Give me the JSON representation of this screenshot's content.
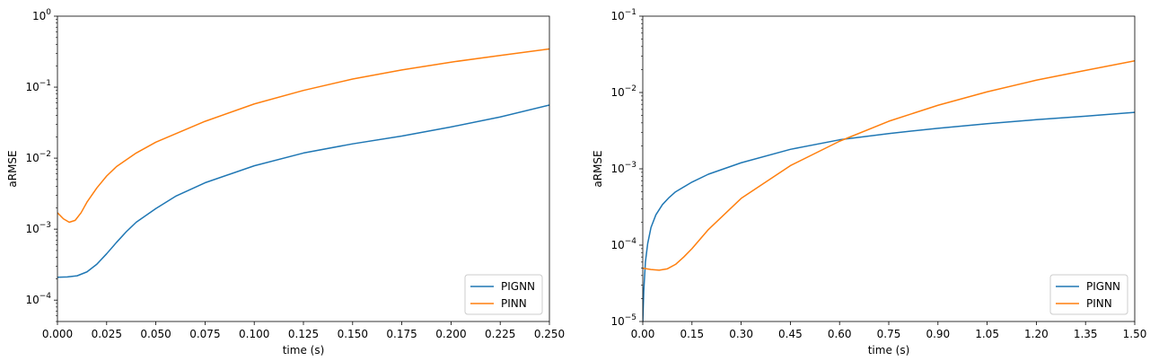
{
  "chart_data": [
    {
      "type": "line",
      "xscale": "linear",
      "yscale": "log",
      "xlabel": "time (s)",
      "ylabel": "aRMSE",
      "xlim": [
        0,
        0.25
      ],
      "ylim": [
        5e-05,
        1
      ],
      "xticks": [
        0,
        0.025,
        0.05,
        0.075,
        0.1,
        0.125,
        0.15,
        0.175,
        0.2,
        0.225,
        0.25
      ],
      "xtick_labels": [
        "0.000",
        "0.025",
        "0.050",
        "0.075",
        "0.100",
        "0.125",
        "0.150",
        "0.175",
        "0.200",
        "0.225",
        "0.250"
      ],
      "yticks": [
        0.0001,
        0.001,
        0.01,
        0.1,
        1
      ],
      "ytick_labels": [
        {
          "base": "10",
          "exp": "−4"
        },
        {
          "base": "10",
          "exp": "−3"
        },
        {
          "base": "10",
          "exp": "−2"
        },
        {
          "base": "10",
          "exp": "−1"
        },
        {
          "base": "10",
          "exp": "0"
        }
      ],
      "legend": {
        "position": "lower-right"
      },
      "series": [
        {
          "name": "PIGNN",
          "color": "#1f77b4",
          "x": [
            0,
            0.005,
            0.01,
            0.015,
            0.02,
            0.025,
            0.03,
            0.035,
            0.04,
            0.05,
            0.06,
            0.075,
            0.1,
            0.125,
            0.15,
            0.175,
            0.2,
            0.225,
            0.25
          ],
          "y": [
            0.00021,
            0.000212,
            0.00022,
            0.00025,
            0.00032,
            0.00045,
            0.00065,
            0.00092,
            0.00125,
            0.00195,
            0.0029,
            0.0045,
            0.0078,
            0.0118,
            0.0159,
            0.0205,
            0.0275,
            0.038,
            0.056
          ]
        },
        {
          "name": "PINN",
          "color": "#ff7f0e",
          "x": [
            0,
            0.003,
            0.006,
            0.009,
            0.012,
            0.015,
            0.02,
            0.025,
            0.03,
            0.04,
            0.05,
            0.075,
            0.1,
            0.125,
            0.15,
            0.175,
            0.2,
            0.225,
            0.25
          ],
          "y": [
            0.0017,
            0.0014,
            0.00125,
            0.00133,
            0.0017,
            0.0024,
            0.0038,
            0.0056,
            0.0076,
            0.0118,
            0.0168,
            0.033,
            0.058,
            0.09,
            0.13,
            0.175,
            0.225,
            0.28,
            0.345
          ]
        }
      ]
    },
    {
      "type": "line",
      "xscale": "linear",
      "yscale": "log",
      "xlabel": "time (s)",
      "ylabel": "aRMSE",
      "xlim": [
        0,
        1.5
      ],
      "ylim": [
        1e-05,
        0.1
      ],
      "xticks": [
        0,
        0.15,
        0.3,
        0.45,
        0.6,
        0.75,
        0.9,
        1.05,
        1.2,
        1.35,
        1.5
      ],
      "xtick_labels": [
        "0.00",
        "0.15",
        "0.30",
        "0.45",
        "0.60",
        "0.75",
        "0.90",
        "1.05",
        "1.20",
        "1.35",
        "1.50"
      ],
      "yticks": [
        1e-05,
        0.0001,
        0.001,
        0.01,
        0.1
      ],
      "ytick_labels": [
        {
          "base": "10",
          "exp": "−5"
        },
        {
          "base": "10",
          "exp": "−4"
        },
        {
          "base": "10",
          "exp": "−3"
        },
        {
          "base": "10",
          "exp": "−2"
        },
        {
          "base": "10",
          "exp": "−1"
        }
      ],
      "legend": {
        "position": "lower-right"
      },
      "series": [
        {
          "name": "PIGNN",
          "color": "#1f77b4",
          "x": [
            0.0,
            0.003,
            0.008,
            0.015,
            0.025,
            0.04,
            0.06,
            0.08,
            0.1,
            0.15,
            0.2,
            0.3,
            0.45,
            0.6,
            0.75,
            0.9,
            1.05,
            1.2,
            1.35,
            1.5
          ],
          "y": [
            1e-05,
            2.5e-05,
            6e-05,
            0.000105,
            0.00017,
            0.00025,
            0.00034,
            0.00042,
            0.0005,
            0.00067,
            0.00085,
            0.0012,
            0.0018,
            0.0024,
            0.0029,
            0.0034,
            0.0039,
            0.0044,
            0.0049,
            0.0055
          ]
        },
        {
          "name": "PINN",
          "color": "#ff7f0e",
          "x": [
            0,
            0.025,
            0.05,
            0.075,
            0.1,
            0.125,
            0.15,
            0.2,
            0.3,
            0.45,
            0.6,
            0.75,
            0.9,
            1.05,
            1.2,
            1.35,
            1.5
          ],
          "y": [
            5e-05,
            4.8e-05,
            4.7e-05,
            4.9e-05,
            5.6e-05,
            7e-05,
            9e-05,
            0.00016,
            0.00041,
            0.0011,
            0.0023,
            0.0042,
            0.0068,
            0.0102,
            0.0145,
            0.0195,
            0.026
          ]
        }
      ]
    }
  ]
}
